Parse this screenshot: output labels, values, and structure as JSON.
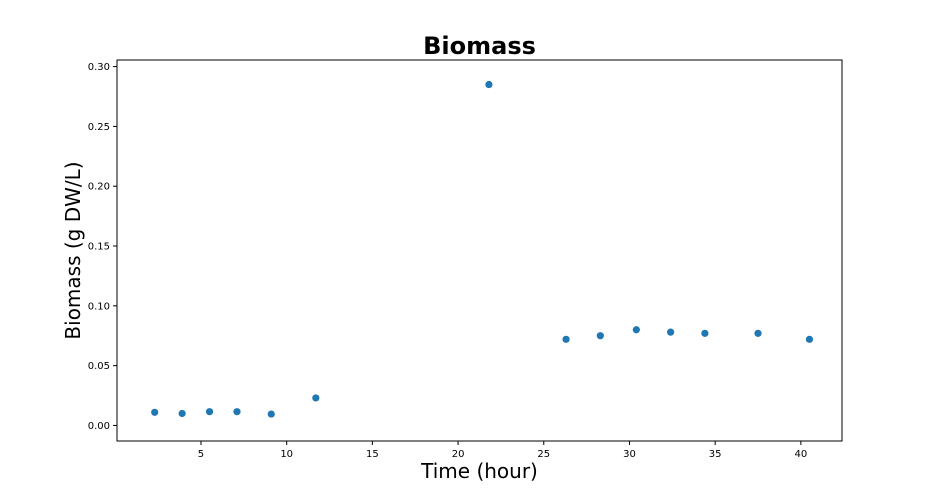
{
  "chart_data": {
    "type": "scatter",
    "title": "Biomass",
    "xlabel": "Time (hour)",
    "ylabel": "Biomass (g DW/L)",
    "xlim": [
      0.1,
      42.4
    ],
    "ylim": [
      -0.013,
      0.3055
    ],
    "xticks": [
      5,
      10,
      15,
      20,
      25,
      30,
      35,
      40
    ],
    "xtick_labels": [
      "5",
      "10",
      "15",
      "20",
      "25",
      "30",
      "35",
      "40"
    ],
    "yticks": [
      0.0,
      0.05,
      0.1,
      0.15,
      0.2,
      0.25,
      0.3
    ],
    "ytick_labels": [
      "0.00",
      "0.05",
      "0.10",
      "0.15",
      "0.20",
      "0.25",
      "0.30"
    ],
    "grid": false,
    "marker_color": "#1f77b4",
    "series": [
      {
        "x": [
          2.3,
          3.9,
          5.5,
          7.1,
          9.1,
          11.7,
          21.8,
          26.3,
          28.3,
          30.4,
          32.4,
          34.4,
          37.5,
          40.5
        ],
        "y": [
          0.011,
          0.01,
          0.0115,
          0.0115,
          0.0095,
          0.023,
          0.285,
          0.072,
          0.075,
          0.08,
          0.078,
          0.077,
          0.077,
          0.072
        ]
      }
    ]
  }
}
